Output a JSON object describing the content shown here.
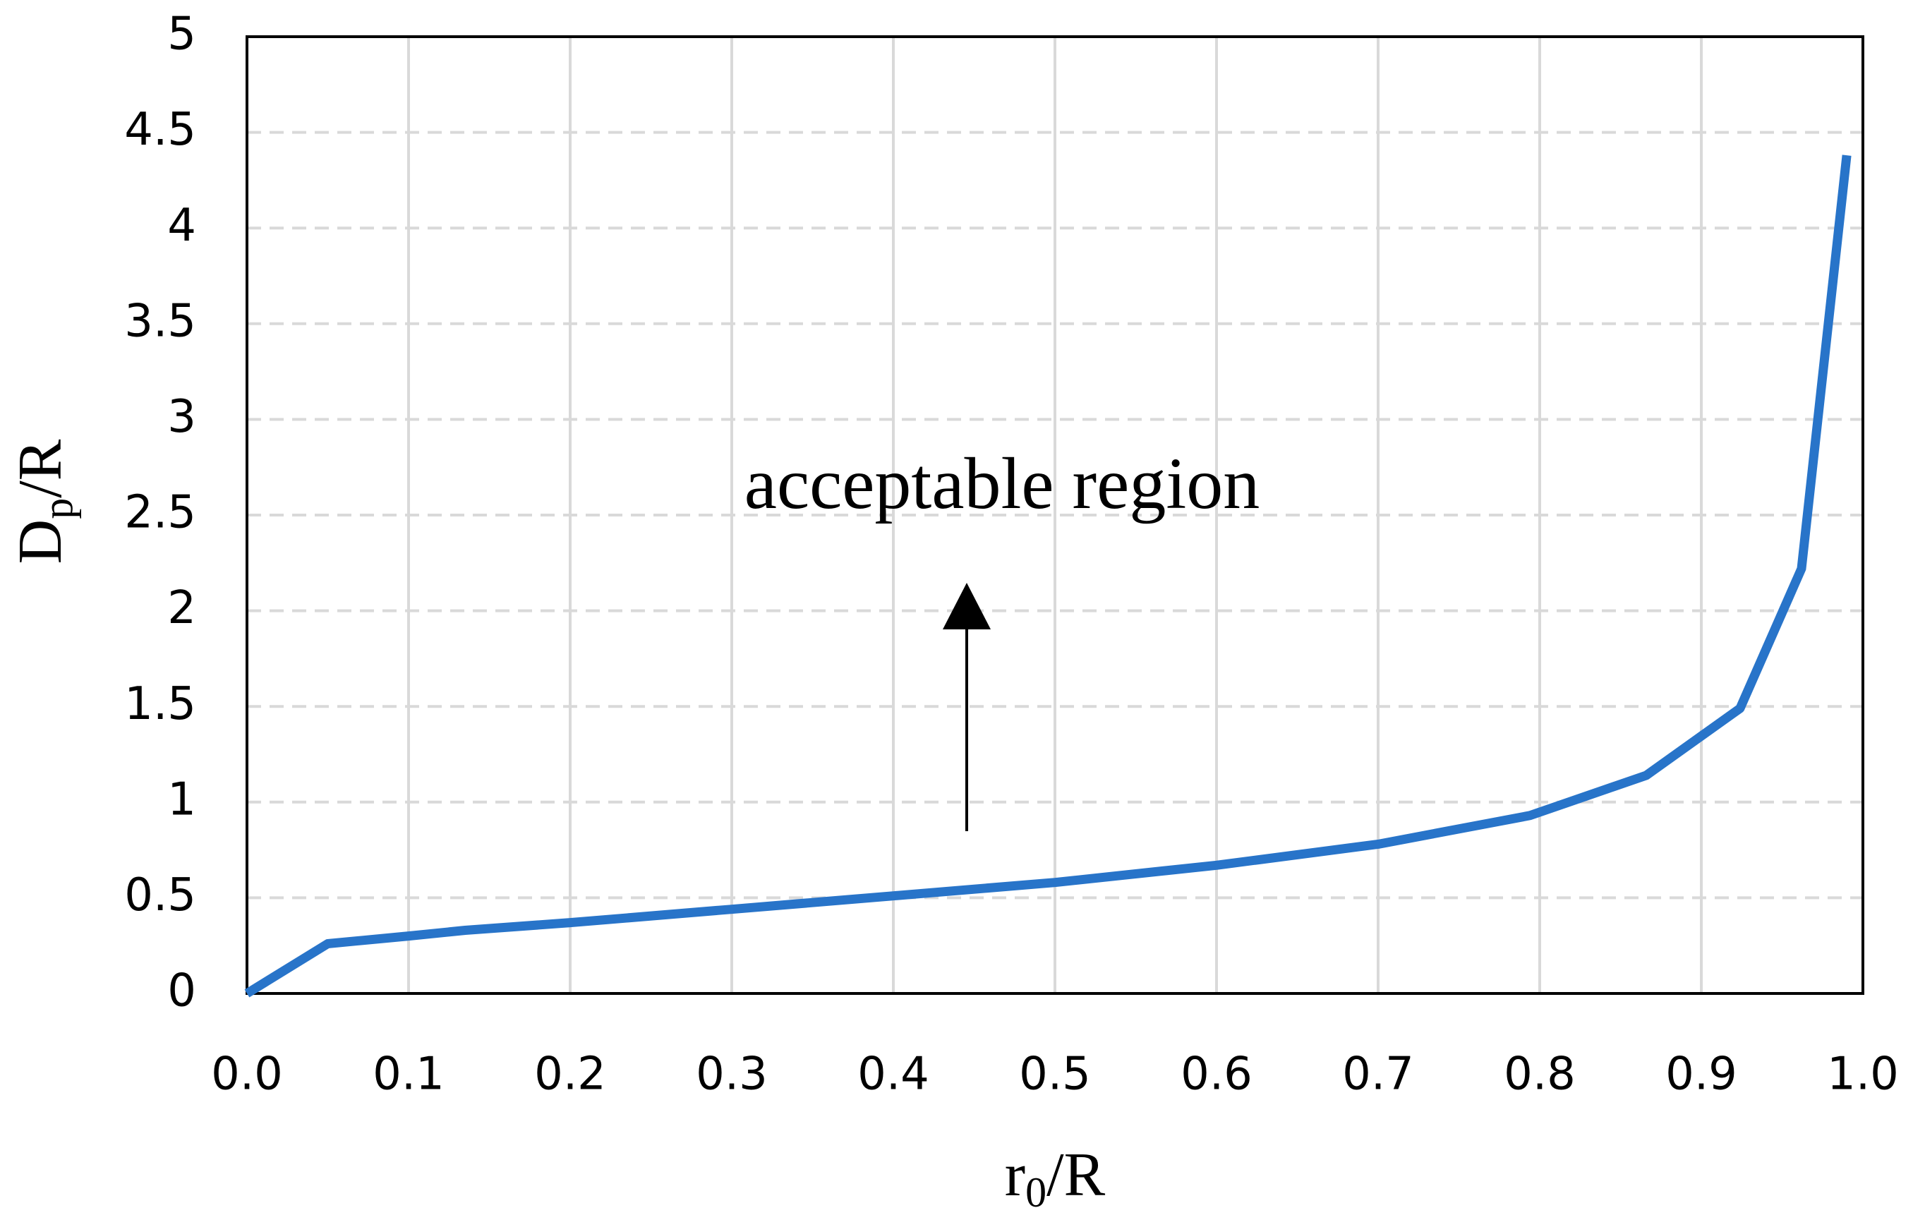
{
  "chart_data": {
    "type": "line",
    "x": [
      0,
      0.05,
      0.1,
      0.135,
      0.2,
      0.3,
      0.4,
      0.5,
      0.6,
      0.7,
      0.794,
      0.866,
      0.924,
      0.962,
      0.99
    ],
    "values": [
      0,
      0.26,
      0.3,
      0.33,
      0.37,
      0.44,
      0.51,
      0.58,
      0.67,
      0.78,
      0.93,
      1.14,
      1.49,
      2.22,
      4.38
    ],
    "color": "#2874c9",
    "xlabel": {
      "main": "r",
      "sub": "0",
      "rest": "/R"
    },
    "ylabel": {
      "main": "D",
      "sub": "p",
      "rest": "/R"
    },
    "annotation": "acceptable region",
    "xlim": [
      0,
      1
    ],
    "ylim": [
      0,
      5
    ],
    "xticks": [
      {
        "value": 0,
        "label": "0.0"
      },
      0.1,
      0.2,
      0.3,
      0.4,
      0.5,
      0.6,
      0.7,
      0.8,
      0.9,
      {
        "value": 1,
        "label": "1.0"
      }
    ],
    "yticks": [
      0,
      0.5,
      1,
      1.5,
      2,
      2.5,
      3,
      3.5,
      4,
      4.5,
      5
    ],
    "grid": true
  }
}
